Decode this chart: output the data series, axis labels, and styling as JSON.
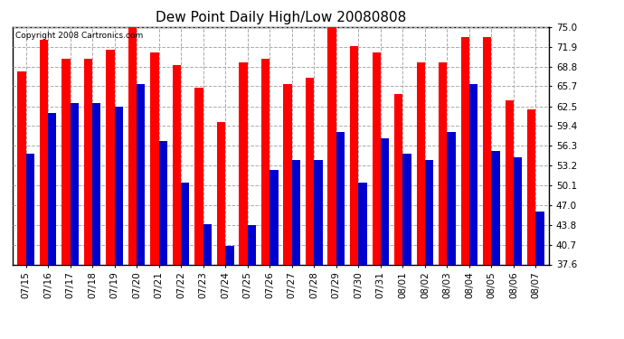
{
  "title": "Dew Point Daily High/Low 20080808",
  "copyright": "Copyright 2008 Cartronics.com",
  "dates": [
    "07/15",
    "07/16",
    "07/17",
    "07/18",
    "07/19",
    "07/20",
    "07/21",
    "07/22",
    "07/23",
    "07/24",
    "07/25",
    "07/26",
    "07/27",
    "07/28",
    "07/29",
    "07/30",
    "07/31",
    "08/01",
    "08/02",
    "08/03",
    "08/04",
    "08/05",
    "08/06",
    "08/07"
  ],
  "highs": [
    68.0,
    73.0,
    70.0,
    70.0,
    71.5,
    76.0,
    71.0,
    69.0,
    65.5,
    60.0,
    69.5,
    70.0,
    66.0,
    67.0,
    75.0,
    72.0,
    71.0,
    64.5,
    69.5,
    69.5,
    73.5,
    73.5,
    63.5,
    62.0
  ],
  "lows": [
    55.0,
    61.5,
    63.0,
    63.0,
    62.5,
    66.0,
    57.0,
    50.5,
    44.0,
    40.5,
    43.8,
    52.5,
    54.0,
    54.0,
    58.5,
    50.5,
    57.5,
    55.0,
    54.0,
    58.5,
    66.0,
    55.5,
    54.5,
    46.0
  ],
  "high_color": "#ff0000",
  "low_color": "#0000cc",
  "bg_color": "#ffffff",
  "grid_color": "#aaaaaa",
  "yticks": [
    37.6,
    40.7,
    43.8,
    47.0,
    50.1,
    53.2,
    56.3,
    59.4,
    62.5,
    65.7,
    68.8,
    71.9,
    75.0
  ],
  "ymin": 37.6,
  "ymax": 75.0,
  "bar_width": 0.38,
  "title_fontsize": 11,
  "tick_fontsize": 7.5,
  "copyright_fontsize": 6.5
}
